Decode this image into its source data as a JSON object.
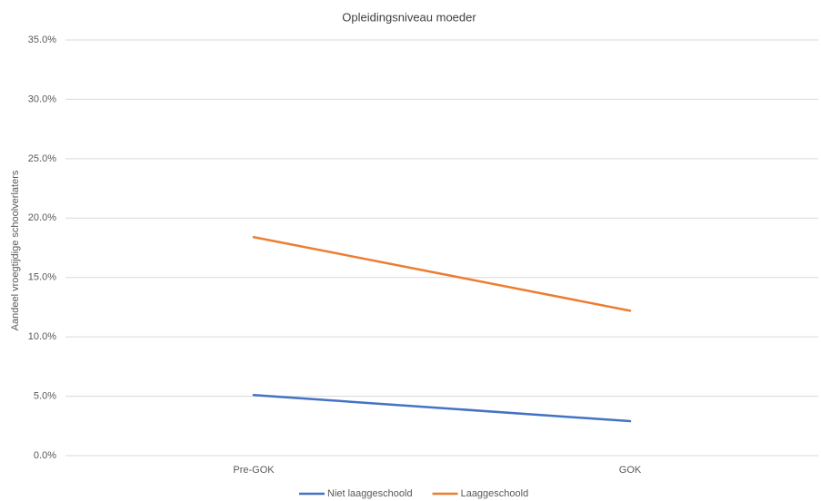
{
  "chart_data": {
    "type": "line",
    "title": "Opleidingsniveau moeder",
    "y_label": "Aandeel vroegtijdige schoolverlaters",
    "categories": [
      "Pre-GOK",
      "GOK"
    ],
    "series": [
      {
        "name": "Niet laaggeschoold",
        "color": "#4472c4",
        "values": [
          5.1,
          2.9
        ]
      },
      {
        "name": "Laaggeschoold",
        "color": "#ed7d31",
        "values": [
          18.4,
          12.2
        ]
      }
    ],
    "ylim": [
      0,
      35
    ],
    "yticks": [
      {
        "value": 0,
        "label": "0.0%"
      },
      {
        "value": 5,
        "label": "5.0%"
      },
      {
        "value": 10,
        "label": "10.0%"
      },
      {
        "value": 15,
        "label": "15.0%"
      },
      {
        "value": 20,
        "label": "20.0%"
      },
      {
        "value": 25,
        "label": "25.0%"
      },
      {
        "value": 30,
        "label": "30.0%"
      },
      {
        "value": 35,
        "label": "35.0%"
      }
    ],
    "grid": true,
    "legend": "bottom"
  }
}
